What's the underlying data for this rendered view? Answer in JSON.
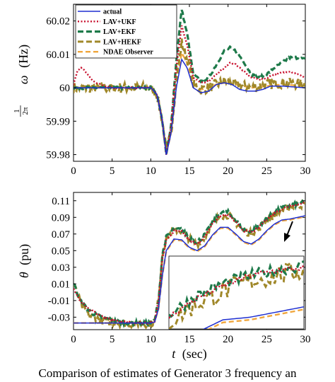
{
  "colors": {
    "actual": "#1f2fd0",
    "lav_ukf": "#c8102e",
    "lav_ekf": "#1e7a4a",
    "lav_hekf": "#a0882a",
    "ndae": "#f0a63c"
  },
  "caption": "Comparison of estimates of Generator 3 frequency an",
  "chart_data": [
    {
      "type": "line",
      "ylabel": "1/2π ω (Hz)",
      "ylabel_parts": {
        "frac_num": "1",
        "frac_den": "2π",
        "var": "ω",
        "unit": "(Hz)"
      },
      "xlabel": "",
      "xlim": [
        0,
        30
      ],
      "ylim": [
        59.978,
        60.025
      ],
      "xticks": [
        "0",
        "5",
        "10",
        "15",
        "20",
        "25",
        "30"
      ],
      "yticks": [
        "59.98",
        "59.99",
        "60",
        "60.01",
        "60.02"
      ],
      "ytick_values": [
        59.98,
        59.99,
        60.0,
        60.01,
        60.02
      ],
      "legend": {
        "placement": "top-left",
        "entries": [
          "actual",
          "LAV+UKF",
          "LAV+EKF",
          "LAV+HEKF",
          "NDAE Observer"
        ]
      },
      "series": [
        {
          "name": "actual",
          "x": [
            0,
            10,
            10.8,
            11.5,
            12.0,
            12.6,
            13.3,
            14.0,
            14.7,
            15.5,
            16.5,
            17.5,
            18.5,
            19.5,
            20.5,
            21.5,
            22.5,
            23.5,
            24.5,
            25.5,
            27,
            30
          ],
          "y": [
            60.0,
            60.0,
            59.998,
            59.99,
            59.98,
            59.986,
            60.0,
            60.0085,
            60.006,
            60.0,
            59.9985,
            59.999,
            60.001,
            60.0015,
            60.001,
            59.9995,
            59.999,
            59.999,
            59.9995,
            60.0005,
            60.0005,
            60.0
          ]
        },
        {
          "name": "LAV+UKF",
          "x": [
            0,
            0.5,
            1,
            1.5,
            2.5,
            3.5,
            5,
            10,
            10.8,
            11.5,
            12.0,
            12.6,
            13.3,
            14.0,
            14.8,
            15.5,
            16.5,
            17.5,
            18.5,
            19.5,
            20.3,
            21,
            22,
            23,
            24,
            25,
            26,
            27,
            28,
            29,
            30
          ],
          "y": [
            60.001,
            60.005,
            60.006,
            60.005,
            60.002,
            60.001,
            60.0,
            60.0,
            59.998,
            59.99,
            59.98,
            59.988,
            60.006,
            60.0185,
            60.012,
            60.003,
            60.0015,
            60.002,
            60.004,
            60.006,
            60.0075,
            60.007,
            60.005,
            60.003,
            60.0025,
            60.003,
            60.004,
            60.0045,
            60.005,
            60.004,
            60.003
          ]
        },
        {
          "name": "LAV+EKF",
          "x": [
            0,
            10,
            10.8,
            11.5,
            12.0,
            12.6,
            13.3,
            14.0,
            14.8,
            15.5,
            16.5,
            17.5,
            18.5,
            19.5,
            20.3,
            21,
            22,
            23,
            24,
            25,
            26,
            27,
            28,
            29,
            30
          ],
          "y": [
            60.0,
            60.0,
            59.998,
            59.99,
            59.98,
            59.988,
            60.008,
            60.0235,
            60.015,
            60.004,
            60.002,
            60.003,
            60.007,
            60.011,
            60.012,
            60.011,
            60.008,
            60.004,
            60.003,
            60.004,
            60.006,
            60.0075,
            60.009,
            60.009,
            60.0085
          ]
        },
        {
          "name": "LAV+HEKF",
          "x": [
            0,
            10,
            10.8,
            11.5,
            12.0,
            12.6,
            13.3,
            14.0,
            14.8,
            15.5,
            16.5,
            17.5,
            18.5,
            19.5,
            21,
            23,
            25,
            27,
            30
          ],
          "y": [
            60.0,
            60.0,
            59.998,
            59.99,
            59.981,
            59.986,
            60.002,
            60.0135,
            60.008,
            60.001,
            59.9995,
            60.0,
            60.001,
            60.002,
            60.001,
            60.0,
            60.001,
            60.0015,
            60.001
          ]
        },
        {
          "name": "NDAE Observer",
          "x": [
            0,
            10,
            10.8,
            11.5,
            12.0,
            12.6,
            13.3,
            14.0,
            14.8,
            15.5,
            16.5,
            17.5,
            18.5,
            19.5,
            21,
            23,
            25,
            27,
            30
          ],
          "y": [
            60.0,
            60.0,
            59.998,
            59.99,
            59.9805,
            59.986,
            60.001,
            60.0105,
            60.007,
            60.001,
            59.9995,
            60.0,
            60.001,
            60.0015,
            60.001,
            60.0,
            60.0005,
            60.001,
            60.0005
          ]
        }
      ]
    },
    {
      "type": "line",
      "ylabel": "θ (pu)",
      "ylabel_parts": {
        "var": "θ",
        "unit": "(pu)"
      },
      "xlabel": "t (sec)",
      "xlabel_parts": {
        "var": "t",
        "unit": "(sec)"
      },
      "xlim": [
        0,
        30
      ],
      "ylim": [
        -0.045,
        0.12
      ],
      "xticks": [
        "0",
        "5",
        "10",
        "15",
        "20",
        "25",
        "30"
      ],
      "yticks": [
        "-0.03",
        "-0.01",
        "0.01",
        "0.03",
        "0.05",
        "0.07",
        "0.09",
        "0.11"
      ],
      "ytick_values": [
        -0.03,
        -0.01,
        0.01,
        0.03,
        0.05,
        0.07,
        0.09,
        0.11
      ],
      "inset": {
        "placement": "bottom-right",
        "arrow_from_x": 28.8,
        "arrow_to_x": 27.6
      },
      "series": [
        {
          "name": "actual",
          "x": [
            0,
            10,
            10.5,
            11,
            11.5,
            12,
            13,
            14,
            15,
            16,
            17,
            18,
            19,
            20,
            21,
            22,
            23,
            24,
            25,
            26,
            27,
            28,
            29,
            30
          ],
          "y": [
            -0.037,
            -0.037,
            -0.036,
            -0.02,
            0.02,
            0.05,
            0.064,
            0.063,
            0.054,
            0.05,
            0.056,
            0.069,
            0.078,
            0.078,
            0.07,
            0.061,
            0.058,
            0.064,
            0.074,
            0.082,
            0.087,
            0.088,
            0.09,
            0.092
          ]
        },
        {
          "name": "LAV+UKF",
          "x": [
            0,
            0.5,
            1,
            2,
            3,
            4,
            5,
            6,
            8,
            10,
            10.5,
            11,
            11.5,
            12,
            13,
            14,
            15,
            16,
            17,
            18,
            19,
            20,
            21,
            22,
            23,
            24,
            25,
            26,
            27,
            28,
            29,
            30
          ],
          "y": [
            0.005,
            -0.005,
            -0.012,
            -0.02,
            -0.025,
            -0.03,
            -0.033,
            -0.035,
            -0.037,
            -0.037,
            -0.034,
            -0.01,
            0.04,
            0.062,
            0.074,
            0.073,
            0.063,
            0.058,
            0.067,
            0.083,
            0.092,
            0.093,
            0.084,
            0.074,
            0.072,
            0.078,
            0.088,
            0.095,
            0.1,
            0.104,
            0.106,
            0.107
          ]
        },
        {
          "name": "LAV+EKF",
          "x": [
            0,
            0.5,
            1,
            2,
            3,
            4,
            5,
            6,
            8,
            10,
            10.5,
            11,
            11.5,
            12,
            13,
            14,
            15,
            16,
            17,
            18,
            19,
            20,
            21,
            22,
            23,
            24,
            25,
            26,
            27,
            28,
            29,
            30
          ],
          "y": [
            0.012,
            -0.002,
            -0.012,
            -0.022,
            -0.028,
            -0.031,
            -0.034,
            -0.036,
            -0.037,
            -0.037,
            -0.034,
            -0.01,
            0.045,
            0.066,
            0.076,
            0.075,
            0.066,
            0.06,
            0.069,
            0.084,
            0.095,
            0.096,
            0.086,
            0.076,
            0.073,
            0.08,
            0.089,
            0.096,
            0.101,
            0.104,
            0.106,
            0.108
          ]
        },
        {
          "name": "LAV+HEKF",
          "x": [
            0,
            1,
            2,
            4,
            6,
            8,
            10,
            10.5,
            11,
            11.5,
            12,
            13,
            14,
            15,
            16,
            17,
            18,
            19,
            20,
            21,
            22,
            23,
            24,
            25,
            26,
            27,
            28,
            29,
            30
          ],
          "y": [
            0.01,
            -0.015,
            -0.028,
            -0.035,
            -0.037,
            -0.038,
            -0.038,
            -0.035,
            -0.01,
            0.045,
            0.065,
            0.075,
            0.074,
            0.064,
            0.058,
            0.066,
            0.082,
            0.092,
            0.093,
            0.084,
            0.074,
            0.071,
            0.077,
            0.086,
            0.093,
            0.098,
            0.102,
            0.104,
            0.106
          ]
        },
        {
          "name": "NDAE Observer",
          "x": [
            0,
            10,
            10.5,
            11,
            11.5,
            12,
            13,
            14,
            15,
            16,
            17,
            18,
            19,
            20,
            21,
            22,
            23,
            24,
            25,
            26,
            27,
            28,
            29,
            30
          ],
          "y": [
            -0.037,
            -0.037,
            -0.036,
            -0.02,
            0.02,
            0.049,
            0.063,
            0.062,
            0.053,
            0.049,
            0.055,
            0.068,
            0.077,
            0.077,
            0.069,
            0.06,
            0.057,
            0.063,
            0.073,
            0.081,
            0.086,
            0.087,
            0.089,
            0.091
          ]
        }
      ]
    }
  ]
}
